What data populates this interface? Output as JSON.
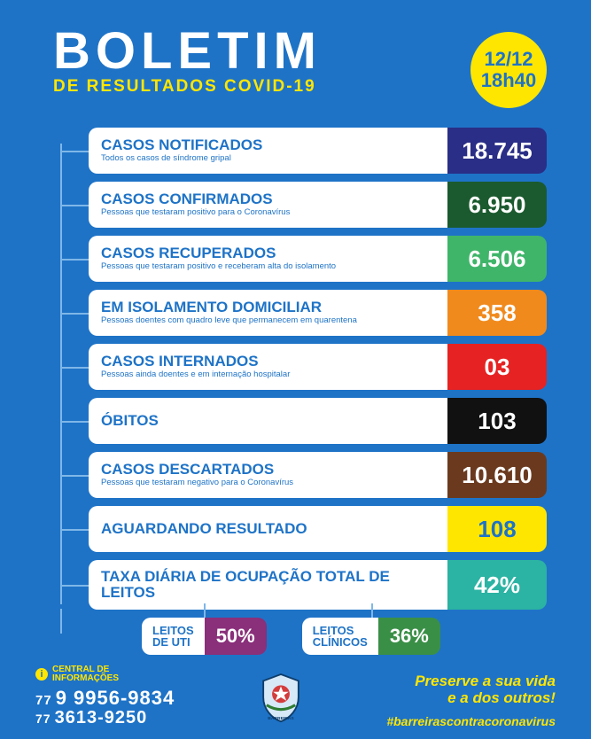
{
  "header": {
    "main_title": "BOLETIM",
    "sub_title": "DE RESULTADOS COVID-19",
    "date1": "12/12",
    "date2": "18h40"
  },
  "colors": {
    "page_bg": "#1e73c7",
    "white": "#ffffff",
    "yellow": "#ffe600",
    "connector": "#7fb7e8"
  },
  "cards": [
    {
      "title": "CASOS NOTIFICADOS",
      "sub": "Todos os casos de síndrome gripal",
      "value": "18.745",
      "bg": "#2a2e86",
      "fg": "#ffffff"
    },
    {
      "title": "CASOS CONFIRMADOS",
      "sub": "Pessoas que testaram positivo para o Coronavírus",
      "value": "6.950",
      "bg": "#1a5a2e",
      "fg": "#ffffff"
    },
    {
      "title": "CASOS RECUPERADOS",
      "sub": "Pessoas que testaram positivo e receberam alta do isolamento",
      "value": "6.506",
      "bg": "#3fb56a",
      "fg": "#ffffff"
    },
    {
      "title": "EM ISOLAMENTO DOMICILIAR",
      "sub": "Pessoas doentes com quadro leve que permanecem em quarentena",
      "value": "358",
      "bg": "#f08a1d",
      "fg": "#ffffff"
    },
    {
      "title": "CASOS INTERNADOS",
      "sub": "Pessoas ainda doentes e em internação hospitalar",
      "value": "03",
      "bg": "#e62222",
      "fg": "#ffffff"
    },
    {
      "title": "ÓBITOS",
      "sub": "",
      "value": "103",
      "bg": "#111111",
      "fg": "#ffffff"
    },
    {
      "title": "CASOS DESCARTADOS",
      "sub": "Pessoas que testaram negativo para o Coronavírus",
      "value": "10.610",
      "bg": "#6b3a1e",
      "fg": "#ffffff"
    },
    {
      "title": "AGUARDANDO RESULTADO",
      "sub": "",
      "value": "108",
      "bg": "#ffe600",
      "fg": "#1e73c7"
    },
    {
      "title": "TAXA DIÁRIA DE OCUPAÇÃO TOTAL DE LEITOS",
      "sub": "",
      "value": "42%",
      "bg": "#2bb3a3",
      "fg": "#ffffff"
    }
  ],
  "sub_cards": [
    {
      "title1": "LEITOS",
      "title2": "DE UTI",
      "value": "50%",
      "bg": "#8a2f7a"
    },
    {
      "title1": "LEITOS",
      "title2": "CLÍNICOS",
      "value": "36%",
      "bg": "#3a8f47"
    }
  ],
  "footer": {
    "info_label1": "CENTRAL DE",
    "info_label2": "INFORMAÇÕES",
    "phone1_prefix": "77",
    "phone1": "9 9956-9834",
    "phone2_prefix": "77",
    "phone2": "3613-9250",
    "slogan1": "Preserve a sua vida",
    "slogan2": "e a dos outros!",
    "hashtag": "#barreirascontracoronavirus",
    "crest_label": "BARREIRAS"
  }
}
